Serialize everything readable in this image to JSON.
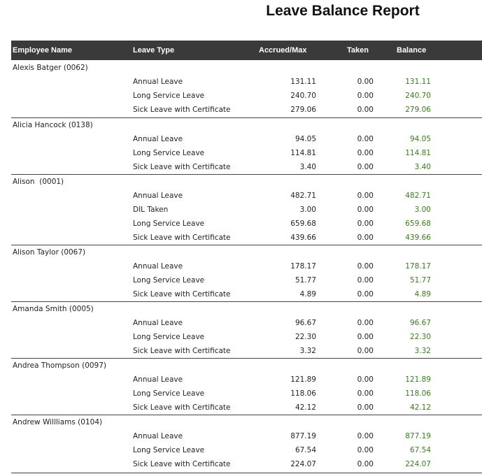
{
  "title": "Leave Balance Report",
  "table": {
    "headers": [
      "Employee Name",
      "Leave Type",
      "Accrued/Max",
      "Taken",
      "Balance"
    ],
    "groups": [
      {
        "employee": "Alexis Batger (0062)",
        "rows": [
          [
            "Annual Leave",
            "131.11",
            "0.00",
            "131.11"
          ],
          [
            "Long Service Leave",
            "240.70",
            "0.00",
            "240.70"
          ],
          [
            "Sick Leave with Certificate",
            "279.06",
            "0.00",
            "279.06"
          ]
        ]
      },
      {
        "employee": "Alicia Hancock (0138)",
        "rows": [
          [
            "Annual Leave",
            "94.05",
            "0.00",
            "94.05"
          ],
          [
            "Long Service Leave",
            "114.81",
            "0.00",
            "114.81"
          ],
          [
            "Sick Leave with Certificate",
            "3.40",
            "0.00",
            "3.40"
          ]
        ]
      },
      {
        "employee": "Alison  (0001)",
        "rows": [
          [
            "Annual Leave",
            "482.71",
            "0.00",
            "482.71"
          ],
          [
            "DIL Taken",
            "3.00",
            "0.00",
            "3.00"
          ],
          [
            "Long Service Leave",
            "659.68",
            "0.00",
            "659.68"
          ],
          [
            "Sick Leave with Certificate",
            "439.66",
            "0.00",
            "439.66"
          ]
        ]
      },
      {
        "employee": "Alison Taylor (0067)",
        "rows": [
          [
            "Annual Leave",
            "178.17",
            "0.00",
            "178.17"
          ],
          [
            "Long Service Leave",
            "51.77",
            "0.00",
            "51.77"
          ],
          [
            "Sick Leave with Certificate",
            "4.89",
            "0.00",
            "4.89"
          ]
        ]
      },
      {
        "employee": "Amanda Smith (0005)",
        "rows": [
          [
            "Annual Leave",
            "96.67",
            "0.00",
            "96.67"
          ],
          [
            "Long Service Leave",
            "22.30",
            "0.00",
            "22.30"
          ],
          [
            "Sick Leave with Certificate",
            "3.32",
            "0.00",
            "3.32"
          ]
        ]
      },
      {
        "employee": "Andrea Thompson (0097)",
        "rows": [
          [
            "Annual Leave",
            "121.89",
            "0.00",
            "121.89"
          ],
          [
            "Long Service Leave",
            "118.06",
            "0.00",
            "118.06"
          ],
          [
            "Sick Leave with Certificate",
            "42.12",
            "0.00",
            "42.12"
          ]
        ]
      },
      {
        "employee": "Andrew Willliams (0104)",
        "rows": [
          [
            "Annual Leave",
            "877.19",
            "0.00",
            "877.19"
          ],
          [
            "Long Service Leave",
            "67.54",
            "0.00",
            "67.54"
          ],
          [
            "Sick Leave with Certificate",
            "224.07",
            "0.00",
            "224.07"
          ]
        ]
      }
    ]
  }
}
